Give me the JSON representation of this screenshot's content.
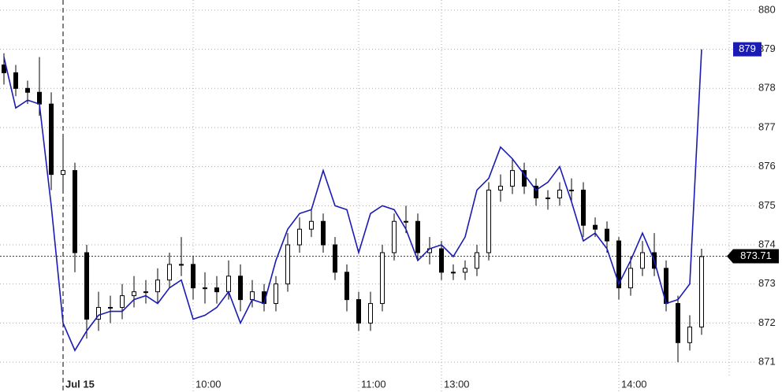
{
  "chart_data": {
    "type": "candlestick",
    "categories": [
      null,
      null,
      null,
      null,
      null,
      "Jul 15",
      null,
      null,
      null,
      null,
      null,
      null,
      null,
      null,
      null,
      null,
      "10:00",
      null,
      null,
      null,
      null,
      null,
      null,
      null,
      null,
      null,
      null,
      null,
      null,
      null,
      "11:00",
      null,
      null,
      null,
      null,
      null,
      null,
      "13:00",
      null,
      null,
      null,
      null,
      null,
      null,
      null,
      null,
      null,
      null,
      null,
      null,
      null,
      null,
      "14:00",
      null,
      null,
      null,
      null,
      null,
      null,
      null
    ],
    "session_break": 5,
    "ohlc": {
      "color": "#000000",
      "open": [
        878.6,
        878.4,
        878.0,
        877.9,
        877.6,
        875.8,
        875.9,
        873.8,
        872.1,
        872.4,
        872.4,
        872.7,
        872.8,
        872.8,
        873.1,
        873.5,
        873.5,
        872.9,
        872.9,
        872.8,
        873.2,
        872.6,
        872.8,
        872.5,
        873.0,
        874.0,
        874.4,
        874.6,
        874.0,
        873.3,
        872.6,
        872.0,
        872.5,
        873.8,
        874.6,
        874.6,
        873.8,
        873.9,
        873.3,
        873.3,
        873.4,
        873.8,
        875.4,
        875.5,
        875.9,
        875.5,
        875.2,
        875.2,
        875.4,
        875.4,
        874.5,
        874.4,
        874.1,
        872.9,
        873.4,
        873.8,
        873.4,
        872.5,
        871.5,
        871.9
      ],
      "high": [
        878.9,
        878.6,
        878.2,
        878.8,
        877.9,
        876.8,
        876.1,
        874.0,
        872.8,
        872.7,
        873.0,
        873.2,
        873.1,
        873.4,
        873.8,
        874.2,
        873.7,
        873.3,
        873.2,
        873.6,
        873.5,
        873.1,
        873.0,
        873.2,
        874.3,
        874.7,
        874.9,
        874.8,
        874.2,
        873.5,
        872.8,
        872.8,
        874.0,
        874.8,
        875.0,
        874.8,
        874.2,
        874.1,
        873.5,
        873.6,
        874.0,
        875.6,
        875.8,
        876.2,
        876.1,
        875.7,
        875.4,
        875.6,
        875.7,
        875.6,
        874.7,
        874.6,
        874.2,
        873.7,
        874.1,
        874.3,
        873.6,
        872.7,
        872.2,
        873.9
      ],
      "low": [
        878.1,
        877.8,
        877.6,
        877.3,
        875.4,
        875.4,
        873.3,
        871.6,
        871.8,
        872.0,
        872.1,
        872.4,
        872.5,
        872.5,
        872.9,
        873.2,
        872.6,
        872.5,
        872.5,
        872.6,
        872.3,
        872.4,
        872.3,
        872.3,
        872.8,
        873.8,
        874.2,
        873.8,
        873.1,
        872.3,
        871.8,
        871.8,
        872.3,
        873.6,
        874.3,
        873.6,
        873.5,
        873.1,
        873.1,
        873.1,
        873.2,
        873.6,
        875.1,
        875.3,
        875.3,
        875.0,
        874.9,
        875.0,
        875.1,
        874.2,
        874.2,
        873.8,
        872.6,
        872.7,
        873.2,
        873.2,
        872.3,
        871.0,
        871.3,
        871.7
      ],
      "close": [
        878.4,
        878.0,
        877.9,
        877.6,
        875.8,
        875.9,
        873.8,
        872.1,
        872.4,
        872.4,
        872.7,
        872.8,
        872.8,
        873.1,
        873.5,
        873.5,
        872.9,
        872.9,
        872.8,
        873.2,
        872.6,
        872.8,
        872.5,
        873.0,
        874.0,
        874.4,
        874.6,
        874.0,
        873.3,
        872.6,
        872.0,
        872.5,
        873.8,
        874.6,
        874.6,
        873.8,
        873.9,
        873.3,
        873.3,
        873.4,
        873.8,
        875.4,
        875.5,
        875.9,
        875.5,
        875.2,
        875.2,
        875.4,
        875.4,
        874.5,
        874.4,
        874.1,
        872.9,
        873.4,
        873.8,
        873.4,
        872.5,
        871.5,
        871.9,
        873.7
      ]
    },
    "line": {
      "color": "#1a1ab4",
      "values": [
        878.8,
        877.5,
        877.7,
        877.6,
        875.0,
        872.0,
        871.3,
        871.8,
        872.2,
        872.3,
        872.3,
        872.6,
        872.7,
        872.5,
        872.9,
        873.1,
        872.1,
        872.2,
        872.4,
        872.8,
        872.0,
        872.6,
        872.5,
        873.6,
        874.4,
        874.8,
        874.9,
        875.9,
        875.0,
        874.9,
        873.8,
        874.8,
        875.0,
        874.9,
        874.4,
        873.6,
        873.9,
        874.0,
        873.7,
        874.2,
        875.4,
        875.7,
        876.5,
        876.2,
        875.8,
        875.4,
        875.6,
        876.0,
        875.1,
        874.1,
        874.3,
        873.9,
        873.0,
        873.6,
        874.3,
        873.6,
        872.5,
        872.6,
        873.0,
        879
      ]
    },
    "reference_value": 873.71,
    "reference_color": "#cc0000",
    "ylim": [
      870.64,
      880.26
    ],
    "yticks": [
      871,
      872,
      873,
      874,
      875,
      876,
      877,
      878,
      879,
      880
    ],
    "grid": true
  }
}
